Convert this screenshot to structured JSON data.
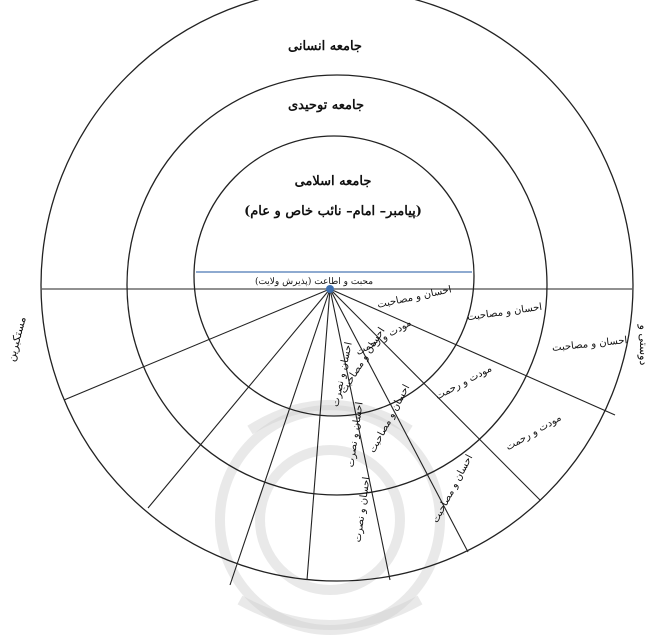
{
  "colors": {
    "line": "#222222",
    "center_line": "#4a78b5",
    "center_dot": "#3d6fb0",
    "watermark": "#cfcfcf"
  },
  "circles": {
    "outer_title": "جامعه انسانی",
    "middle_title": "جامعه توحیدی",
    "inner_title": "جامعه اسلامی",
    "inner_subtitle": "(پیامبر– امام– نائب خاص و عام)"
  },
  "center_label": "محبت و اطاعت (پذیرش ولایت)",
  "inner_ring_labels": [
    "احسان و مصاحبت",
    "مودت و رحمت",
    "احسان و مصاحبت",
    "احسان و نصرت"
  ],
  "middle_ring_labels": [
    "احسان و مصاحبت",
    "مودت و رحمت",
    "احسان و مصاحبت",
    "احسان و نصرت"
  ],
  "outer_ring_labels": [
    "احسان و مصاحبت",
    "مودت و رحمت",
    "احسان و مصاحبت",
    "احسان و نصرت"
  ],
  "outside_labels": {
    "right_edge": "دوستی و",
    "left_edge": "مستکبرین"
  }
}
